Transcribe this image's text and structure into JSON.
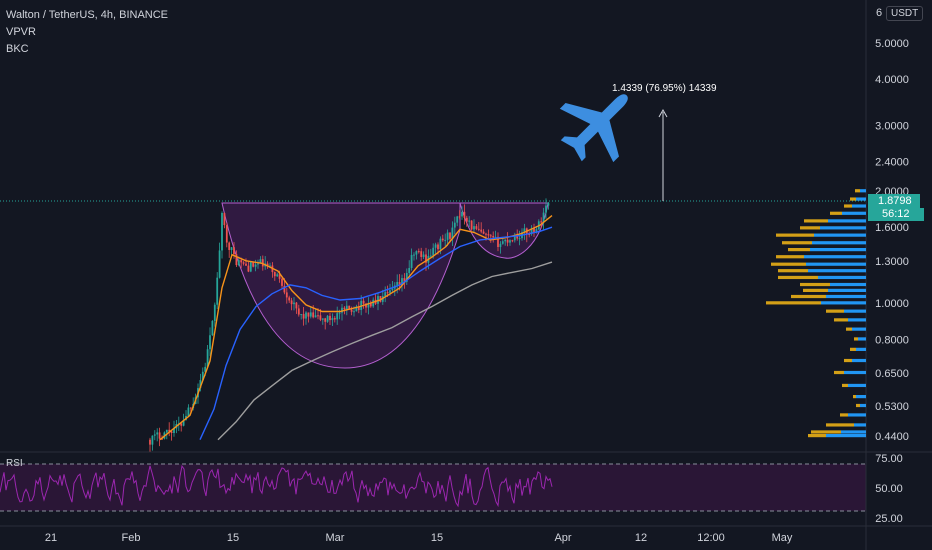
{
  "header": {
    "symbol_line": "Walton / TetherUS, 4h, BINANCE",
    "indicators": [
      "VPVR",
      "BKC"
    ]
  },
  "price_axis": {
    "currency": "USDT",
    "top_partial": "6",
    "current_price": "1.8798",
    "countdown": "56:12"
  },
  "rsi_label": "RSI",
  "annotation": {
    "text": "1.4339 (76.95%) 14339"
  },
  "colors": {
    "background": "#131722",
    "up_candle": "#26a69a",
    "down_candle": "#ef5350",
    "ema_fast": "#f7931a",
    "ema_mid": "#2962ff",
    "ema_slow": "#9e9e9e",
    "cup_pattern": "#9c27b0",
    "rsi_line": "#9c27b0",
    "volume_up": "#2196f3",
    "volume_down": "#d4a017",
    "airplane": "#3d8ee0",
    "price_badge": "#26a69a"
  },
  "icons": [
    "airplane-icon"
  ],
  "chart_data": {
    "type": "candlestick",
    "scale": "log",
    "x_ticks": [
      "21",
      "Feb",
      "15",
      "Mar",
      "15",
      "Apr",
      "12",
      "12:00",
      "May"
    ],
    "y_ticks": [
      "5.0000",
      "4.0000",
      "3.0000",
      "2.4000",
      "2.0000",
      "1.6000",
      "1.3000",
      "1.0000",
      "0.8000",
      "0.6500",
      "0.5300",
      "0.4400"
    ],
    "ylim": [
      0.4,
      6.0
    ],
    "current_price": 1.8798,
    "rsi": {
      "ticks": [
        "75.00",
        "50.00",
        "25.00"
      ],
      "ylim": [
        20,
        80
      ],
      "upper_band": 70,
      "lower_band": 30
    }
  }
}
